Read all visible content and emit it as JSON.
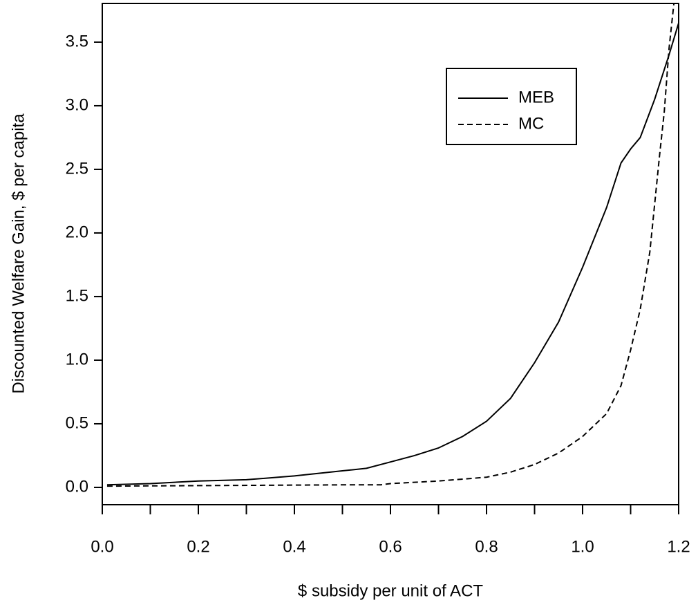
{
  "chart_data": {
    "type": "line",
    "xlabel": "$ subsidy per unit of ACT",
    "ylabel": "Discounted Welfare Gain, $ per capita",
    "xlim": [
      0,
      1.2
    ],
    "ylim": [
      -0.136,
      3.804
    ],
    "xticks": [
      {
        "value": 0,
        "label": "0.0"
      },
      0.2,
      0.4,
      0.6,
      0.8,
      {
        "value": 1,
        "label": "1.0"
      },
      1.2
    ],
    "xminorticks": [
      0.1,
      0.3,
      0.5,
      0.7,
      0.9,
      1.1
    ],
    "yticks": [
      {
        "value": 0,
        "label": "0.0"
      },
      0.5,
      {
        "value": 1,
        "label": "1.0"
      },
      1.5,
      {
        "value": 2,
        "label": "2.0"
      },
      2.5,
      {
        "value": 3,
        "label": "3.0"
      },
      3.5
    ],
    "legend": "top-right",
    "series": [
      {
        "name": "MEB",
        "color": "#000000",
        "dash": "solid",
        "x": [
          0.01,
          0.1,
          0.2,
          0.3,
          0.4,
          0.5,
          0.55,
          0.6,
          0.65,
          0.7,
          0.75,
          0.8,
          0.85,
          0.9,
          0.95,
          1.0,
          1.05,
          1.08,
          1.1,
          1.12,
          1.15,
          1.18,
          1.2
        ],
        "values": [
          0.02,
          0.03,
          0.05,
          0.06,
          0.09,
          0.13,
          0.15,
          0.2,
          0.25,
          0.31,
          0.4,
          0.52,
          0.7,
          0.98,
          1.3,
          1.73,
          2.2,
          2.55,
          2.66,
          2.75,
          3.05,
          3.4,
          3.65
        ]
      },
      {
        "name": "MC",
        "color": "#000000",
        "dash": "dashed",
        "x": [
          0.01,
          0.5,
          0.58,
          0.6,
          0.7,
          0.8,
          0.85,
          0.9,
          0.95,
          1.0,
          1.05,
          1.08,
          1.1,
          1.12,
          1.14,
          1.16,
          1.17,
          1.18,
          1.19
        ],
        "values": [
          0.01,
          0.02,
          0.02,
          0.03,
          0.05,
          0.08,
          0.12,
          0.18,
          0.27,
          0.4,
          0.58,
          0.8,
          1.08,
          1.4,
          1.85,
          2.6,
          2.95,
          3.45,
          3.8
        ]
      }
    ]
  }
}
